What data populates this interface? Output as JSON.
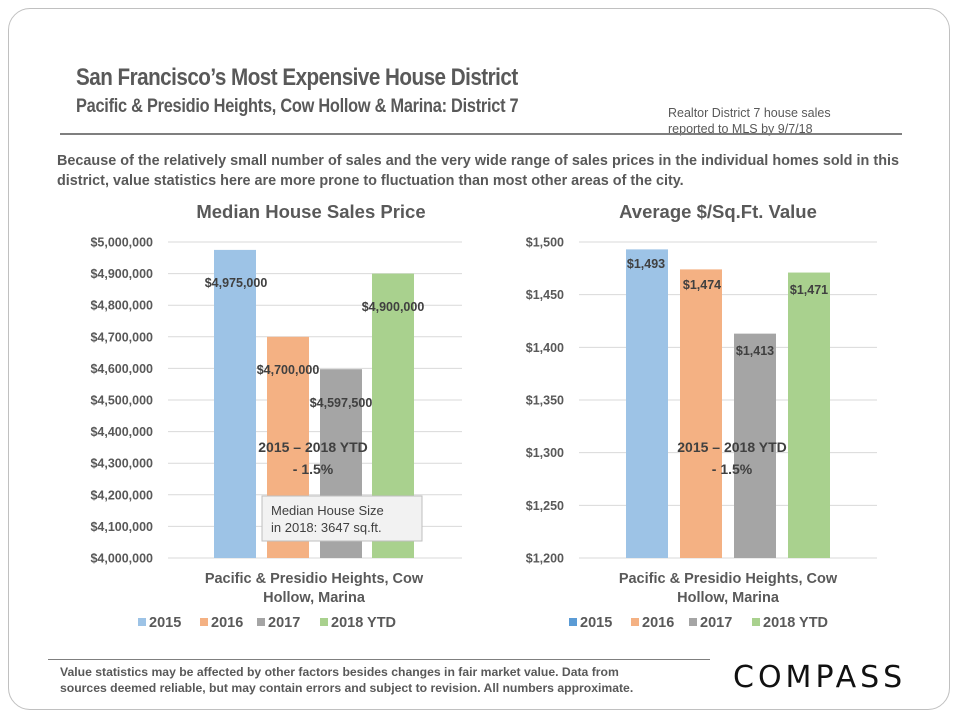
{
  "header": {
    "title": "San Francisco’s Most Expensive House District",
    "subtitle": "Pacific & Presidio Heights, Cow Hollow & Marina:  District 7",
    "source_note_line1": "Realtor District  7 house sales",
    "source_note_line2": "reported to MLS by 9/7/18"
  },
  "intro_text": "Because of the relatively small number of sales and the very wide range of sales prices in the individual homes sold in this district,  value statistics here are more prone to fluctuation than most other areas of the city.",
  "footer": {
    "disclaimer_line1": "Value statistics may be affected by other factors besides changes in fair market value. Data from",
    "disclaimer_line2": "sources deemed reliable, but may contain errors and subject to revision.  All numbers approximate.",
    "logo": "COMPASS"
  },
  "colors": {
    "2015": "#9dc3e6",
    "2016": "#f4b183",
    "2017": "#a5a5a5",
    "2018 YTD": "#a9d18e",
    "legend_2015_right": "#5b9bd5",
    "text": "#595959",
    "label": "#404040",
    "grid": "#d9d9d9"
  },
  "chart_data": [
    {
      "type": "bar",
      "title": "Median House Sales Price",
      "xlabel": "",
      "ylabel": "",
      "categories": [
        "Pacific & Presidio Heights, Cow Hollow, Marina"
      ],
      "category_label_lines": [
        "Pacific & Presidio Heights, Cow",
        "Hollow, Marina"
      ],
      "series": [
        {
          "name": "2015",
          "values": [
            4975000
          ],
          "label": "$4,975,000"
        },
        {
          "name": "2016",
          "values": [
            4700000
          ],
          "label": "$4,700,000"
        },
        {
          "name": "2017",
          "values": [
            4597500
          ],
          "label": "$4,597,500"
        },
        {
          "name": "2018 YTD",
          "values": [
            4900000
          ],
          "label": "$4,900,000"
        }
      ],
      "ylim": [
        4000000,
        5000000
      ],
      "yticks": [
        4000000,
        4100000,
        4200000,
        4300000,
        4400000,
        4500000,
        4600000,
        4700000,
        4800000,
        4900000,
        5000000
      ],
      "ytick_labels": [
        "$4,000,000",
        "$4,100,000",
        "$4,200,000",
        "$4,300,000",
        "$4,400,000",
        "$4,500,000",
        "$4,600,000",
        "$4,700,000",
        "$4,800,000",
        "$4,900,000",
        "$5,000,000"
      ],
      "grid": true,
      "legend": [
        "2015",
        "2016",
        "2017",
        "2018 YTD"
      ],
      "legend_position": "bottom",
      "annotation_line1": "2015 – 2018 YTD",
      "annotation_line2": "- 1.5%",
      "callout_line1": "Median House Size",
      "callout_line2": "in 2018: 3647 sq.ft."
    },
    {
      "type": "bar",
      "title": "Average $/Sq.Ft. Value",
      "xlabel": "",
      "ylabel": "",
      "categories": [
        "Pacific & Presidio Heights, Cow Hollow, Marina"
      ],
      "category_label_lines": [
        "Pacific & Presidio Heights, Cow",
        "Hollow, Marina"
      ],
      "series": [
        {
          "name": "2015",
          "values": [
            1493
          ],
          "label": "$1,493"
        },
        {
          "name": "2016",
          "values": [
            1474
          ],
          "label": "$1,474"
        },
        {
          "name": "2017",
          "values": [
            1413
          ],
          "label": "$1,413"
        },
        {
          "name": "2018 YTD",
          "values": [
            1471
          ],
          "label": "$1,471"
        }
      ],
      "ylim": [
        1200,
        1500
      ],
      "yticks": [
        1200,
        1250,
        1300,
        1350,
        1400,
        1450,
        1500
      ],
      "ytick_labels": [
        "$1,200",
        "$1,250",
        "$1,300",
        "$1,350",
        "$1,400",
        "$1,450",
        "$1,500"
      ],
      "grid": true,
      "legend": [
        "2015",
        "2016",
        "2017",
        "2018 YTD"
      ],
      "legend_position": "bottom",
      "annotation_line1": "2015 – 2018 YTD",
      "annotation_line2": "- 1.5%"
    }
  ]
}
